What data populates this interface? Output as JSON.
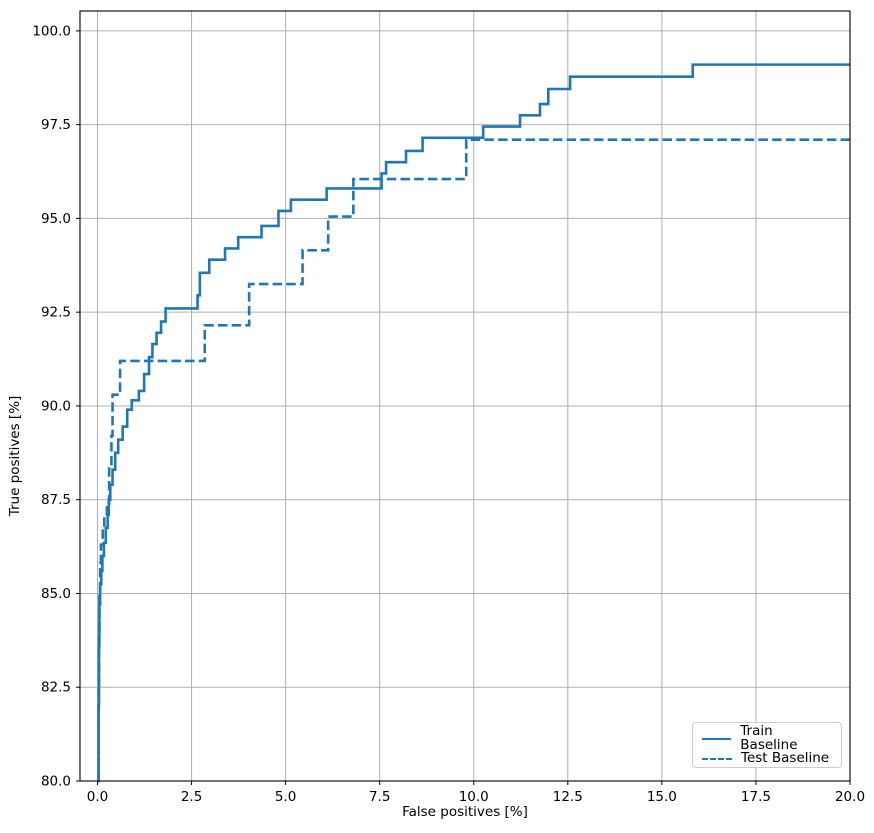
{
  "figure": {
    "xlabel": "False positives [%]",
    "ylabel": "True positives [%]",
    "x_tick_labels": [
      "0.0",
      "2.5",
      "5.0",
      "7.5",
      "10.0",
      "12.5",
      "15.0",
      "17.5",
      "20.0"
    ],
    "y_tick_labels": [
      "80.0",
      "82.5",
      "85.0",
      "87.5",
      "90.0",
      "92.5",
      "95.0",
      "97.5",
      "100.0"
    ],
    "colors": {
      "line": "#1f77b4",
      "grid": "#b0b0b0",
      "spine": "#000000",
      "tick_text": "#000000",
      "legend_border": "#cccccc"
    }
  },
  "legend": {
    "location": "lower right",
    "entries": [
      {
        "label": "Train Baseline",
        "style": "solid"
      },
      {
        "label": "Test Baseline",
        "style": "dashed"
      }
    ]
  },
  "chart_data": {
    "type": "line",
    "step": true,
    "title": "",
    "xlabel": "False positives [%]",
    "ylabel": "True positives [%]",
    "xlim": [
      -0.465,
      20.0
    ],
    "ylim": [
      80.0,
      100.53
    ],
    "x_ticks": [
      0.0,
      2.5,
      5.0,
      7.5,
      10.0,
      12.5,
      15.0,
      17.5,
      20.0
    ],
    "y_ticks": [
      80.0,
      82.5,
      85.0,
      87.5,
      90.0,
      92.5,
      95.0,
      97.5,
      100.0
    ],
    "grid": true,
    "legend_position": "lower right",
    "series": [
      {
        "name": "Train Baseline",
        "line_style": "solid",
        "color": "#1f77b4",
        "points": [
          [
            0.02,
            80.0
          ],
          [
            0.03,
            82.0
          ],
          [
            0.04,
            83.6
          ],
          [
            0.05,
            84.7
          ],
          [
            0.07,
            85.25
          ],
          [
            0.1,
            85.6
          ],
          [
            0.13,
            86.0
          ],
          [
            0.17,
            86.35
          ],
          [
            0.22,
            86.75
          ],
          [
            0.27,
            87.1
          ],
          [
            0.3,
            87.5
          ],
          [
            0.34,
            87.9
          ],
          [
            0.4,
            88.3
          ],
          [
            0.47,
            88.75
          ],
          [
            0.55,
            89.1
          ],
          [
            0.67,
            89.45
          ],
          [
            0.79,
            89.9
          ],
          [
            0.91,
            90.15
          ],
          [
            1.1,
            90.4
          ],
          [
            1.24,
            90.85
          ],
          [
            1.37,
            91.3
          ],
          [
            1.46,
            91.65
          ],
          [
            1.57,
            91.95
          ],
          [
            1.69,
            92.25
          ],
          [
            1.81,
            92.6
          ],
          [
            2.66,
            92.95
          ],
          [
            2.72,
            93.55
          ],
          [
            2.97,
            93.9
          ],
          [
            3.39,
            94.2
          ],
          [
            3.74,
            94.5
          ],
          [
            4.36,
            94.8
          ],
          [
            4.81,
            95.2
          ],
          [
            5.14,
            95.5
          ],
          [
            6.09,
            95.8
          ],
          [
            7.55,
            96.2
          ],
          [
            7.67,
            96.5
          ],
          [
            8.2,
            96.8
          ],
          [
            8.64,
            97.15
          ],
          [
            10.25,
            97.45
          ],
          [
            11.23,
            97.75
          ],
          [
            11.76,
            98.05
          ],
          [
            11.98,
            98.45
          ],
          [
            12.56,
            98.78
          ],
          [
            15.82,
            99.1
          ],
          [
            20.0,
            99.1
          ]
        ]
      },
      {
        "name": "Test Baseline",
        "line_style": "dashed",
        "color": "#1f77b4",
        "points": [
          [
            0.02,
            80.0
          ],
          [
            0.03,
            82.5
          ],
          [
            0.04,
            84.0
          ],
          [
            0.05,
            85.0
          ],
          [
            0.07,
            85.8
          ],
          [
            0.09,
            86.3
          ],
          [
            0.14,
            86.75
          ],
          [
            0.18,
            87.05
          ],
          [
            0.25,
            87.4
          ],
          [
            0.31,
            88.45
          ],
          [
            0.37,
            89.2
          ],
          [
            0.4,
            90.3
          ],
          [
            0.6,
            91.2
          ],
          [
            2.85,
            92.15
          ],
          [
            4.03,
            93.25
          ],
          [
            5.45,
            94.15
          ],
          [
            6.13,
            95.05
          ],
          [
            6.8,
            96.05
          ],
          [
            9.8,
            97.1
          ],
          [
            20.0,
            97.1
          ]
        ]
      }
    ]
  }
}
